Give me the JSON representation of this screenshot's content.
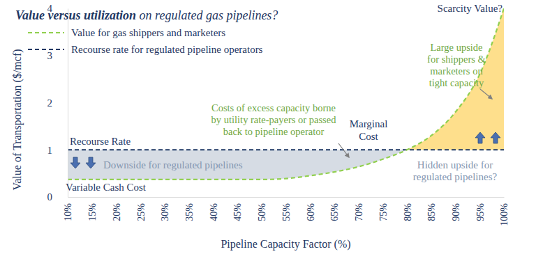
{
  "chart_data": {
    "type": "line",
    "title": "Value versus utilization on regulated gas pipelines?",
    "x_label": "Pipeline Capacity Factor (%)",
    "y_label": "Value of Transportation ($/mcf)",
    "categories": [
      "10%",
      "15%",
      "20%",
      "25%",
      "30%",
      "35%",
      "40%",
      "45%",
      "50%",
      "55%",
      "60%",
      "65%",
      "70%",
      "75%",
      "80%",
      "85%",
      "90%",
      "95%",
      "100%"
    ],
    "series": [
      {
        "name": "Value for gas shippers and marketers",
        "color": "#92d050",
        "line_style": "dashed",
        "values": [
          0.37,
          0.37,
          0.37,
          0.37,
          0.37,
          0.37,
          0.37,
          0.37,
          0.37,
          0.39,
          0.45,
          0.53,
          0.64,
          0.8,
          1.0,
          1.3,
          1.8,
          2.6,
          4.0
        ]
      },
      {
        "name": "Recourse rate for regulated pipeline operators",
        "color": "#1f3864",
        "line_style": "dashed",
        "values": [
          1,
          1,
          1,
          1,
          1,
          1,
          1,
          1,
          1,
          1,
          1,
          1,
          1,
          1,
          1,
          1,
          1,
          1,
          1
        ]
      }
    ],
    "ylim": [
      0,
      4
    ],
    "yticks": [
      0,
      1,
      2,
      3,
      4
    ],
    "grid": false,
    "legend": "upper left",
    "annotations": [
      [
        "Scarcity Value?"
      ],
      [
        "Large upside",
        "for shippers &",
        "marketers on",
        "tight capacity"
      ],
      [
        "Costs of excess capacity borne",
        "by utility rate-payers or passed",
        "back to pipeline operator"
      ],
      [
        "Recourse Rate"
      ],
      [
        "Downside for regulated pipelines"
      ],
      [
        "Variable Cash Cost"
      ],
      [
        "Marginal",
        "Cost"
      ],
      [
        "Hidden upside for",
        "regulated pipelines?"
      ]
    ]
  }
}
